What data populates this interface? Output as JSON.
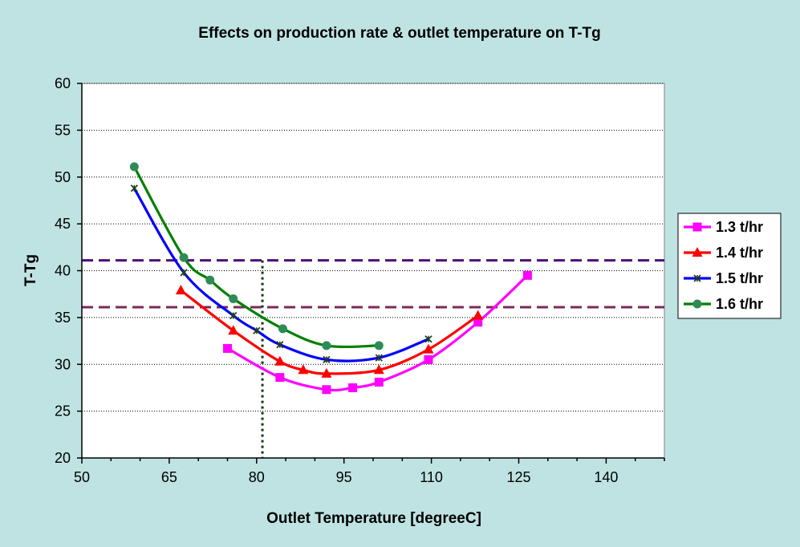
{
  "chart_data": {
    "type": "line",
    "title": "Effects on production rate & outlet temperature on T-Tg",
    "xlabel": "Outlet Temperature [degreeC]",
    "ylabel": "T-Tg",
    "xlim": [
      50,
      150
    ],
    "ylim": [
      20,
      60
    ],
    "xticks": [
      50,
      65,
      80,
      95,
      110,
      125,
      140
    ],
    "yticks": [
      20,
      25,
      30,
      35,
      40,
      45,
      50,
      55,
      60
    ],
    "grid": "horizontal dotted",
    "legend_position": "right",
    "series": [
      {
        "name": "1.3 t/hr",
        "color": "#ff00ff",
        "marker": "square",
        "points": [
          [
            75,
            31.7
          ],
          [
            84,
            28.6
          ],
          [
            92,
            27.3
          ],
          [
            96.5,
            27.5
          ],
          [
            101,
            28.1
          ],
          [
            109.5,
            30.5
          ],
          [
            118,
            34.5
          ],
          [
            126.5,
            39.5
          ]
        ]
      },
      {
        "name": "1.4 t/hr",
        "color": "#ff0000",
        "marker": "triangle",
        "points": [
          [
            67,
            37.9
          ],
          [
            76,
            33.6
          ],
          [
            84,
            30.3
          ],
          [
            88,
            29.4
          ],
          [
            92,
            29.0
          ],
          [
            101,
            29.4
          ],
          [
            109.5,
            31.6
          ],
          [
            118,
            35.2
          ]
        ]
      },
      {
        "name": "1.5 t/hr",
        "color": "#0000ff",
        "marker": "star",
        "points": [
          [
            59,
            48.8
          ],
          [
            67.5,
            39.8
          ],
          [
            76,
            35.2
          ],
          [
            80,
            33.6
          ],
          [
            84,
            32.1
          ],
          [
            92,
            30.5
          ],
          [
            101,
            30.7
          ],
          [
            109.5,
            32.7
          ]
        ]
      },
      {
        "name": "1.6 t/hr",
        "color": "#008000",
        "marker": "circle",
        "points": [
          [
            59,
            51.1
          ],
          [
            67.5,
            41.4
          ],
          [
            72,
            39.0
          ],
          [
            76,
            37.0
          ],
          [
            84.5,
            33.8
          ],
          [
            92,
            32.0
          ],
          [
            101,
            32.0
          ]
        ]
      }
    ],
    "reference_lines": [
      {
        "orientation": "horizontal",
        "value": 41.1,
        "color": "#4b0f7a",
        "style": "dashed"
      },
      {
        "orientation": "horizontal",
        "value": 36.1,
        "color": "#7a2a5a",
        "style": "dashed"
      },
      {
        "orientation": "vertical",
        "value": 81,
        "color": "#143c14",
        "style": "dotted"
      }
    ]
  }
}
